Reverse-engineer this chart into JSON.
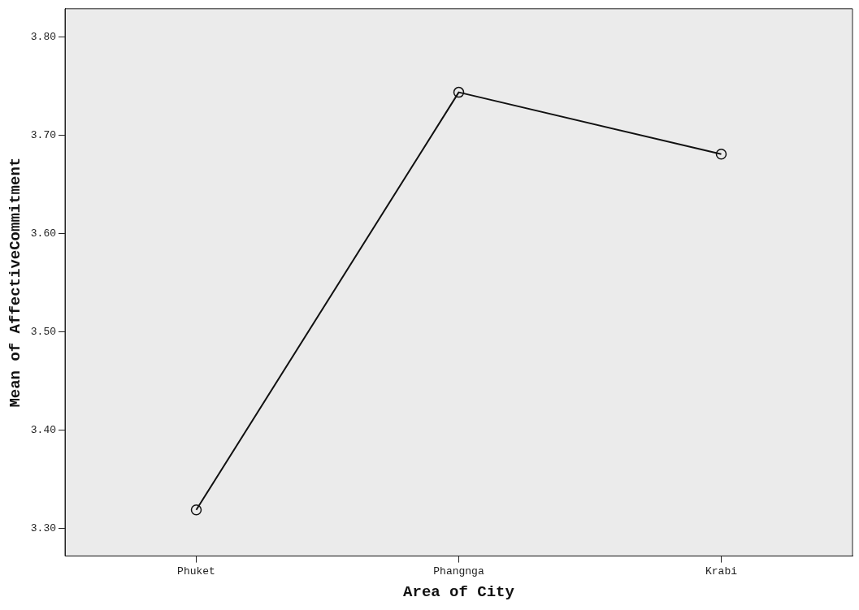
{
  "chart_data": {
    "type": "line",
    "xlabel": "Area of City",
    "ylabel": "Mean of AffectiveCommitment",
    "categories": [
      "Phuket",
      "Phangnga",
      "Krabi"
    ],
    "series": [
      {
        "color": "#111111",
        "values": [
          3.319,
          3.744,
          3.681
        ]
      }
    ],
    "ylim": [
      3.272,
      3.829
    ],
    "yticks": [
      {
        "value": 3.3,
        "label": "3.30"
      },
      {
        "value": 3.4,
        "label": "3.40"
      },
      {
        "value": 3.5,
        "label": "3.50"
      },
      {
        "value": 3.6,
        "label": "3.60"
      },
      {
        "value": 3.7,
        "label": "3.70"
      },
      {
        "value": 3.8,
        "label": "3.80"
      }
    ],
    "grid": false,
    "legend": false,
    "marker": "circle",
    "line_style": "solid"
  }
}
